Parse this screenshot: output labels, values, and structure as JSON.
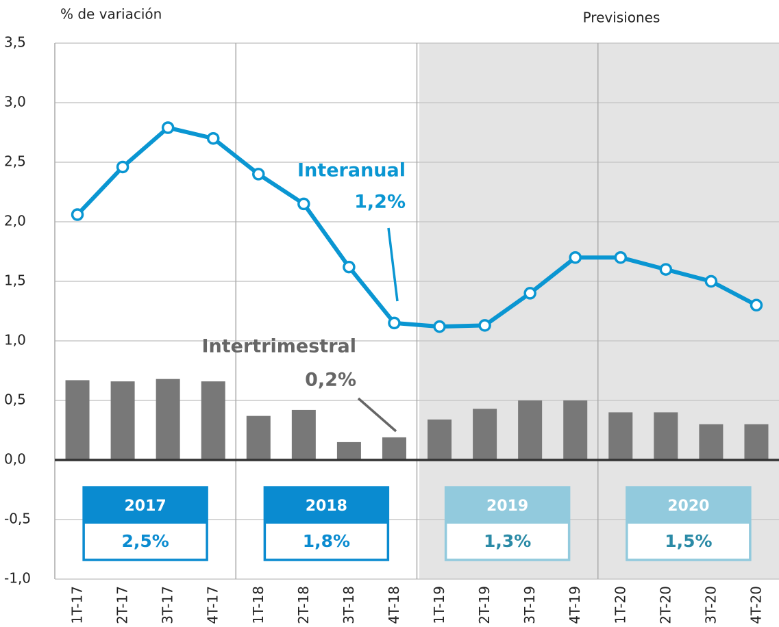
{
  "chart_data": {
    "type": "bar_line",
    "y_label": "% de variación",
    "forecast_label": "Previsiones",
    "categories": [
      "1T-17",
      "2T-17",
      "3T-17",
      "4T-17",
      "1T-18",
      "2T-18",
      "3T-18",
      "4T-18",
      "1T-19",
      "2T-19",
      "3T-19",
      "4T-19",
      "1T-20",
      "2T-20",
      "3T-20",
      "4T-20"
    ],
    "series": [
      {
        "name": "Interanual",
        "type": "line",
        "color": "#0a96d2",
        "values": [
          2.06,
          2.46,
          2.79,
          2.7,
          2.4,
          2.15,
          1.62,
          1.15,
          1.12,
          1.13,
          1.4,
          1.7,
          1.7,
          1.6,
          1.5,
          1.3
        ]
      },
      {
        "name": "Intertrimestral",
        "type": "bar",
        "color": "#787878",
        "values": [
          0.67,
          0.66,
          0.68,
          0.66,
          0.37,
          0.42,
          0.15,
          0.19,
          0.34,
          0.43,
          0.5,
          0.5,
          0.4,
          0.4,
          0.3,
          0.3
        ]
      }
    ],
    "annotations": [
      {
        "series": "Interanual",
        "text": "1,2%"
      },
      {
        "series": "Intertrimestral",
        "text": "0,2%"
      }
    ],
    "year_boxes": [
      {
        "year": "2017",
        "value_label": "2,5%",
        "color": "#0a8bd0"
      },
      {
        "year": "2018",
        "value_label": "1,8%",
        "color": "#0a8bd0"
      },
      {
        "year": "2019",
        "value_label": "1,3%",
        "color": "#92cadd"
      },
      {
        "year": "2020",
        "value_label": "1,5%",
        "color": "#92cadd"
      }
    ],
    "ylim": [
      -1.0,
      3.5
    ],
    "yticks": [
      {
        "value": -1.0,
        "label": "-1,0"
      },
      {
        "value": -0.5,
        "label": "-0,5"
      },
      {
        "value": 0,
        "label": "0,0"
      },
      {
        "value": 0.5,
        "label": "0,5"
      },
      {
        "value": 1.0,
        "label": "1,0"
      },
      {
        "value": 1.5,
        "label": "1,5"
      },
      {
        "value": 2.0,
        "label": "2,0"
      },
      {
        "value": 2.5,
        "label": "2,5"
      },
      {
        "value": 3.0,
        "label": "3,0"
      },
      {
        "value": 3.5,
        "label": "3,5"
      }
    ],
    "grid": true
  }
}
